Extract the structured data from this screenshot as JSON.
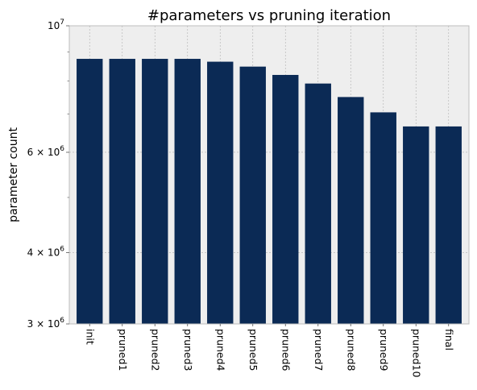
{
  "chart_data": {
    "type": "bar",
    "title": "#parameters vs pruning iteration",
    "xlabel": "",
    "ylabel": "parameter count",
    "yscale": "log",
    "ylim": [
      3000000,
      10000000
    ],
    "grid": true,
    "categories": [
      "init",
      "pruned1",
      "pruned2",
      "pruned3",
      "pruned4",
      "pruned5",
      "pruned6",
      "pruned7",
      "pruned8",
      "pruned9",
      "pruned10",
      "final"
    ],
    "values": [
      8750000,
      8750000,
      8750000,
      8750000,
      8650000,
      8480000,
      8200000,
      7920000,
      7500000,
      7050000,
      6660000,
      6660000
    ],
    "yticks": [
      {
        "value": 10000000,
        "base": "10",
        "exp": "7"
      },
      {
        "value": 6000000,
        "base": "6 × 10",
        "exp": "6"
      },
      {
        "value": 4000000,
        "base": "4 × 10",
        "exp": "6"
      },
      {
        "value": 3000000,
        "base": "3 × 10",
        "exp": "6"
      }
    ],
    "minor_yticks": [
      9000000,
      8000000,
      7000000,
      5000000
    ],
    "colors": {
      "bar": "#0b2a55",
      "plot_bg": "#eeeeee",
      "grid": "#b0b0b0",
      "frame": "#bcbcbc"
    }
  }
}
